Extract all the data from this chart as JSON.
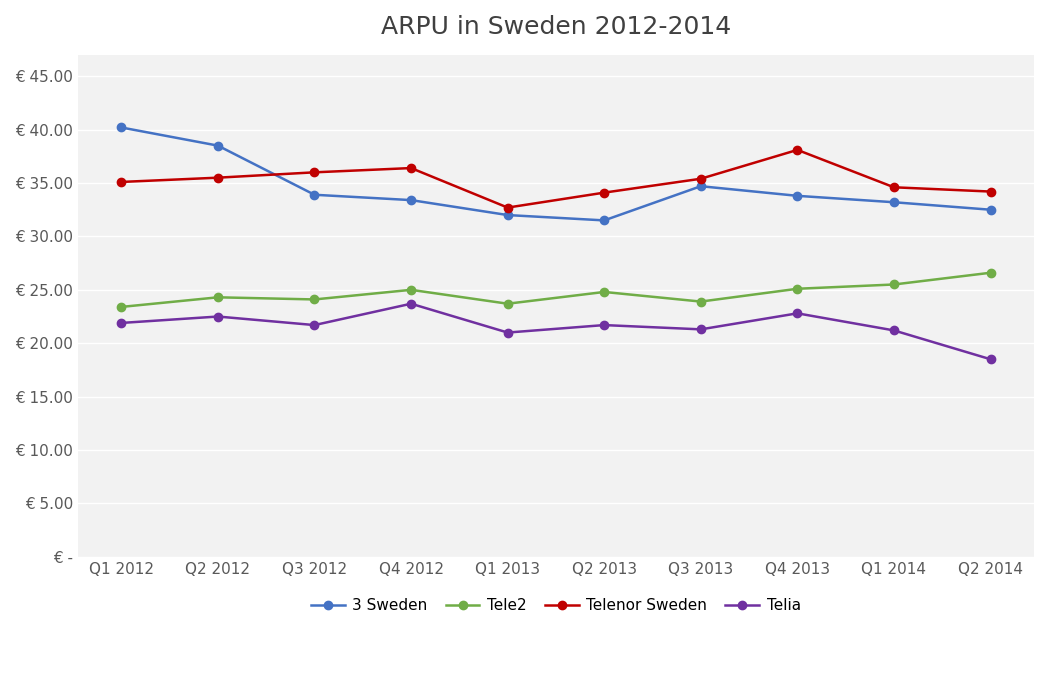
{
  "title": "ARPU in Sweden 2012-2014",
  "categories": [
    "Q1 2012",
    "Q2 2012",
    "Q3 2012",
    "Q4 2012",
    "Q1 2013",
    "Q2 2013",
    "Q3 2013",
    "Q4 2013",
    "Q1 2014",
    "Q2 2014"
  ],
  "series": {
    "3 Sweden": [
      40.2,
      38.5,
      33.9,
      33.4,
      32.0,
      31.5,
      34.7,
      33.8,
      33.2,
      32.5
    ],
    "Tele2": [
      23.4,
      24.3,
      24.1,
      25.0,
      23.7,
      24.8,
      23.9,
      25.1,
      25.5,
      26.6
    ],
    "Telenor Sweden": [
      35.1,
      35.5,
      36.0,
      36.4,
      32.7,
      34.1,
      35.4,
      38.1,
      34.6,
      34.2
    ],
    "Telia": [
      21.9,
      22.5,
      21.7,
      23.7,
      21.0,
      21.7,
      21.3,
      22.8,
      21.2,
      18.5
    ]
  },
  "colors": {
    "3 Sweden": "#4472C4",
    "Tele2": "#70AD47",
    "Telenor Sweden": "#C00000",
    "Telia": "#7030A0"
  },
  "yticks": [
    0,
    5,
    10,
    15,
    20,
    25,
    30,
    35,
    40,
    45
  ],
  "ytick_labels": [
    "€ -",
    "€ 5.00",
    "€ 10.00",
    "€ 15.00",
    "€ 20.00",
    "€ 25.00",
    "€ 30.00",
    "€ 35.00",
    "€ 40.00",
    "€ 45.00"
  ],
  "ylim": [
    0,
    47
  ],
  "plot_bg_color": "#F2F2F2",
  "fig_bg_color": "#FFFFFF",
  "grid_color": "#FFFFFF",
  "title_fontsize": 18,
  "tick_fontsize": 11,
  "legend_fontsize": 11
}
